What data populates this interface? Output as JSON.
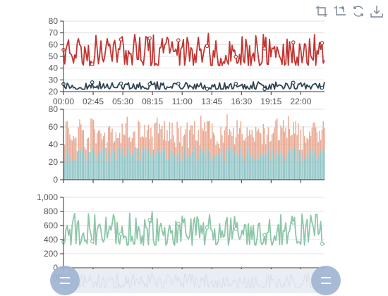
{
  "toolbox": {
    "items": [
      {
        "name": "zoom-icon",
        "title": ""
      },
      {
        "name": "zoom-reset-icon",
        "title": ""
      },
      {
        "name": "restore-icon",
        "title": ""
      },
      {
        "name": "save-image-icon",
        "title": ""
      }
    ]
  },
  "colors": {
    "top_red": "#c23531",
    "top_dark": "#2f4554",
    "bar_bottom": "#8fc4c6",
    "bar_top": "#e9a790",
    "bottom_line": "#8dc6a8",
    "axis": "#333333",
    "grid": "#e0e0e0",
    "slider_handle": "#9fb4d2",
    "slider_bg": "#e9edf4"
  },
  "chart_data": [
    {
      "type": "line",
      "x_ticks": [
        "00:00",
        "02:45",
        "05:30",
        "08:15",
        "11:00",
        "13:45",
        "16:30",
        "19:15",
        "22:00"
      ],
      "y_ticks": [
        "20",
        "30",
        "40",
        "50",
        "60",
        "70",
        "80"
      ],
      "ylim": [
        20,
        80
      ],
      "series": [
        {
          "band": [
            42,
            70
          ]
        },
        {
          "band": [
            20,
            30
          ]
        }
      ]
    },
    {
      "type": "bar",
      "stacked": true,
      "y_ticks": [
        "0",
        "20",
        "40",
        "60",
        "80"
      ],
      "ylim": [
        0,
        80
      ],
      "series": [
        {
          "band": [
            20,
            38
          ]
        },
        {
          "band": [
            10,
            38
          ]
        }
      ]
    },
    {
      "type": "line",
      "x_ticks": [
        "00:00",
        "02:45",
        "05:30",
        "08:15",
        "11:00",
        "13:45",
        "16:30",
        "19:15",
        "22:00"
      ],
      "y_ticks": [
        "0",
        "200",
        "400",
        "600",
        "800",
        "1,000"
      ],
      "ylim": [
        0,
        1000
      ],
      "series": [
        {
          "band": [
            320,
            800
          ]
        }
      ]
    }
  ]
}
